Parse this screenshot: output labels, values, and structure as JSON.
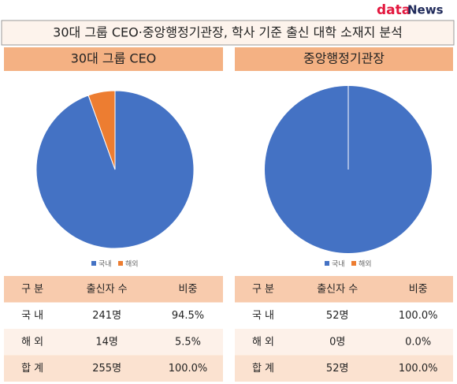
{
  "logo": {
    "brand": "data",
    "suffix": "News"
  },
  "title": "30대 그룹 CEO·중앙행정기관장, 학사 기준 출신 대학 소재지 분석",
  "chart_data": [
    {
      "type": "pie",
      "title": "30대 그룹 CEO",
      "categories": [
        "국내",
        "해외"
      ],
      "values": [
        94.5,
        5.5
      ],
      "colors": [
        "#4472c4",
        "#ed7d31"
      ],
      "legend": "bottom"
    },
    {
      "type": "pie",
      "title": "중앙행정기관장",
      "categories": [
        "국내",
        "해외"
      ],
      "values": [
        100,
        0
      ],
      "colors": [
        "#4472c4",
        "#ed7d31"
      ],
      "legend": "bottom"
    }
  ],
  "tables": [
    {
      "header": [
        "구 분",
        "출신자 수",
        "비중"
      ],
      "rows": [
        [
          "국 내",
          "241명",
          "94.5%"
        ],
        [
          "해 외",
          "14명",
          "5.5%"
        ],
        [
          "합 계",
          "255명",
          "100.0%"
        ]
      ]
    },
    {
      "header": [
        "구 분",
        "출신자 수",
        "비중"
      ],
      "rows": [
        [
          "국 내",
          "52명",
          "100.0%"
        ],
        [
          "해 외",
          "0명",
          "0.0%"
        ],
        [
          "합 계",
          "52명",
          "100.0%"
        ]
      ]
    }
  ]
}
